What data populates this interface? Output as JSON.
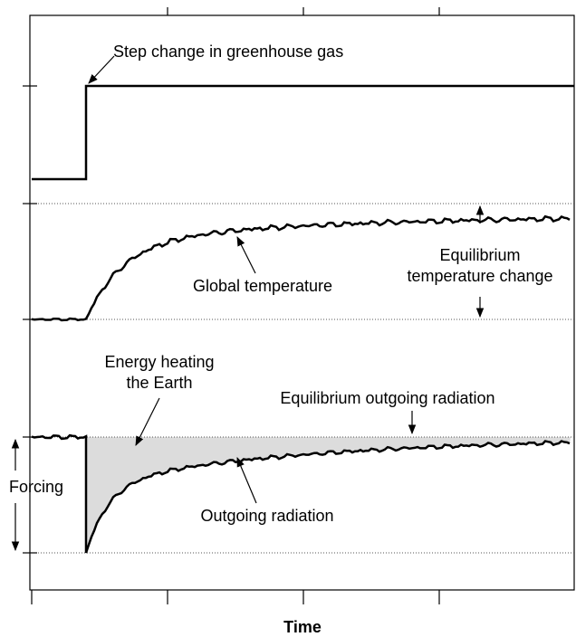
{
  "labels": {
    "step": "Step change in greenhouse gas",
    "global_temperature": "Global temperature",
    "equilibrium_temperature": [
      "Equilibrium",
      "temperature change"
    ],
    "energy_heating": [
      "Energy heating",
      "the Earth"
    ],
    "equilibrium_outgoing": "Equilibrium outgoing radiation",
    "outgoing": "Outgoing radiation",
    "forcing": "Forcing",
    "x_axis": "Time"
  }
}
